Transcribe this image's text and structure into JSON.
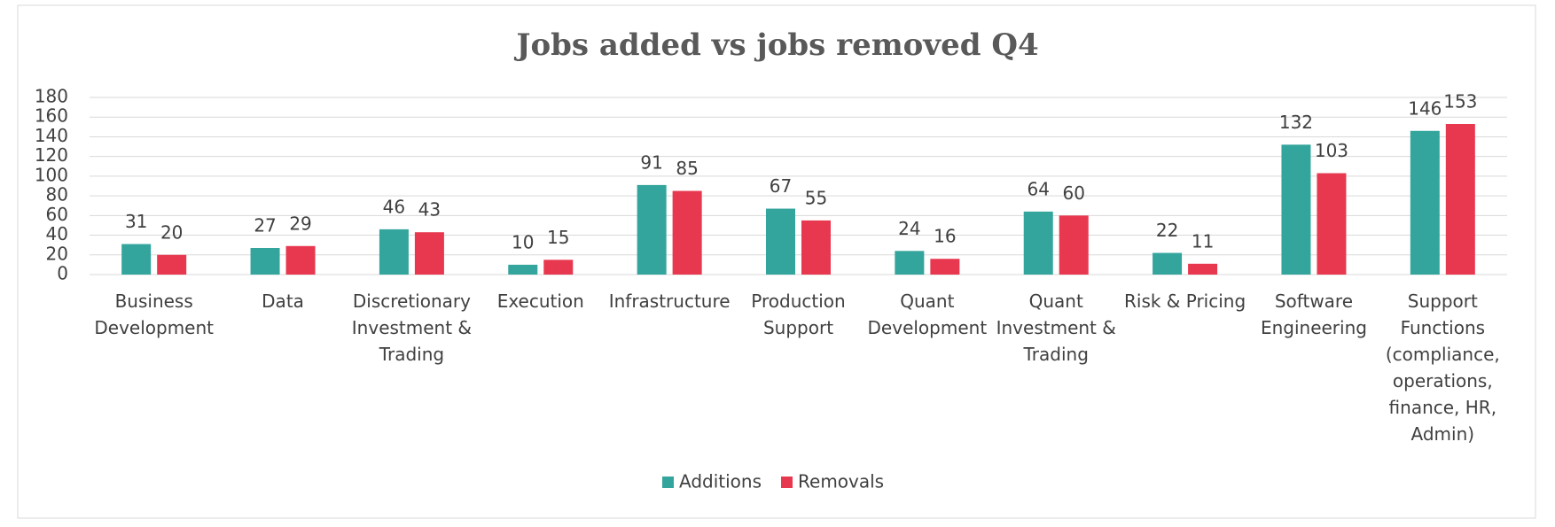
{
  "chart_data": {
    "type": "bar",
    "title": "Jobs added vs jobs removed Q4",
    "categories": [
      "Business Development",
      "Data",
      "Discretionary Investment & Trading",
      "Execution",
      "Infrastructure",
      "Production Support",
      "Quant Development",
      "Quant Investment & Trading",
      "Risk & Pricing",
      "Software Engineering",
      "Support Functions (compliance, operations, finance, HR, Admin)"
    ],
    "series": [
      {
        "name": "Additions",
        "color": "#33a59c",
        "values": [
          31,
          27,
          46,
          10,
          91,
          67,
          24,
          64,
          22,
          132,
          146
        ]
      },
      {
        "name": "Removals",
        "color": "#e8384f",
        "values": [
          20,
          29,
          43,
          15,
          85,
          55,
          16,
          60,
          11,
          103,
          153
        ]
      }
    ],
    "ylim": [
      0,
      180
    ],
    "yticks": [
      0,
      20,
      40,
      60,
      80,
      100,
      120,
      140,
      160,
      180
    ],
    "grid": true,
    "legend": "bottom"
  }
}
